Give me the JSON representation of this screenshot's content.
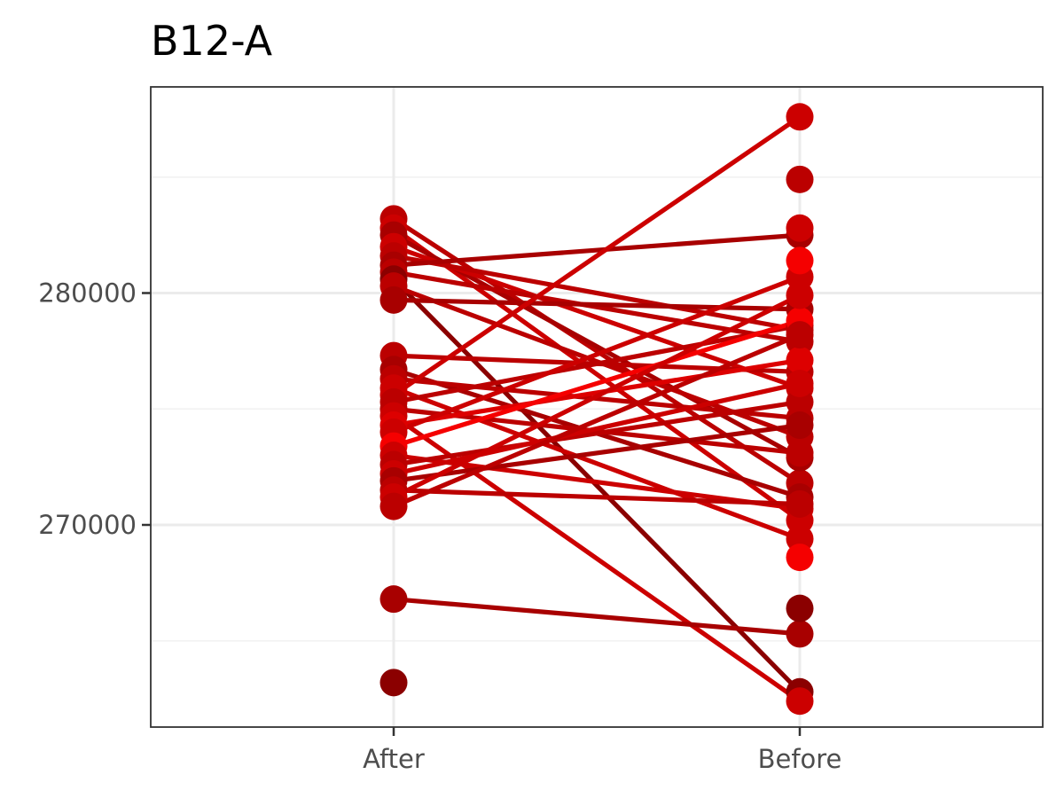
{
  "chart_data": {
    "type": "line",
    "title": "B12-A",
    "xlabel": "",
    "ylabel": "",
    "categories": [
      "After",
      "Before"
    ],
    "y_ticks": [
      270000,
      280000
    ],
    "y_tick_labels": [
      "270000",
      "280000"
    ],
    "ylim": [
      261000,
      288500
    ],
    "grid": true,
    "legend": "none",
    "colors": [
      "#8b0000",
      "#a80000",
      "#bb0000",
      "#cc0000",
      "#dd0000",
      "#f50000"
    ],
    "pairs": [
      {
        "after": 283200,
        "before": 271800,
        "color": "#bb0000"
      },
      {
        "after": 282800,
        "before": 270200,
        "color": "#cc0000"
      },
      {
        "after": 282500,
        "before": 272900,
        "color": "#a80000"
      },
      {
        "after": 282000,
        "before": 275900,
        "color": "#cc0000"
      },
      {
        "after": 281600,
        "before": 278400,
        "color": "#bb0000"
      },
      {
        "after": 281200,
        "before": 282500,
        "color": "#a80000"
      },
      {
        "after": 280900,
        "before": 277900,
        "color": "#bb0000"
      },
      {
        "after": 280600,
        "before": 262800,
        "color": "#8b0000"
      },
      {
        "after": 280300,
        "before": 273800,
        "color": "#bb0000"
      },
      {
        "after": 279700,
        "before": 279300,
        "color": "#a80000"
      },
      {
        "after": 277300,
        "before": 276600,
        "color": "#bb0000"
      },
      {
        "after": 276700,
        "before": 271200,
        "color": "#a80000"
      },
      {
        "after": 276300,
        "before": 274600,
        "color": "#bb0000"
      },
      {
        "after": 275900,
        "before": 269400,
        "color": "#cc0000"
      },
      {
        "after": 275600,
        "before": 287600,
        "color": "#cc0000"
      },
      {
        "after": 275300,
        "before": 278600,
        "color": "#bb0000"
      },
      {
        "after": 275000,
        "before": 273100,
        "color": "#bb0000"
      },
      {
        "after": 274700,
        "before": 262400,
        "color": "#cc0000"
      },
      {
        "after": 274300,
        "before": 277100,
        "color": "#dd0000"
      },
      {
        "after": 274000,
        "before": 280700,
        "color": "#cc0000"
      },
      {
        "after": 273400,
        "before": 278800,
        "color": "#f50000"
      },
      {
        "after": 273000,
        "before": 270700,
        "color": "#cc0000"
      },
      {
        "after": 272600,
        "before": 275300,
        "color": "#bb0000"
      },
      {
        "after": 272200,
        "before": 276100,
        "color": "#cc0000"
      },
      {
        "after": 271900,
        "before": 274300,
        "color": "#a80000"
      },
      {
        "after": 271500,
        "before": 270900,
        "color": "#bb0000"
      },
      {
        "after": 271200,
        "before": 279900,
        "color": "#cc0000"
      },
      {
        "after": 270800,
        "before": 278200,
        "color": "#bb0000"
      },
      {
        "after": 266800,
        "before": 265300,
        "color": "#a80000"
      }
    ],
    "extra_points": [
      {
        "category": "After",
        "value": 263200,
        "color": "#8b0000"
      },
      {
        "category": "Before",
        "value": 284900,
        "color": "#bb0000"
      },
      {
        "category": "Before",
        "value": 282800,
        "color": "#cc0000"
      },
      {
        "category": "Before",
        "value": 281400,
        "color": "#f50000"
      },
      {
        "category": "Before",
        "value": 266400,
        "color": "#8b0000"
      },
      {
        "category": "Before",
        "value": 268600,
        "color": "#f50000"
      }
    ]
  }
}
